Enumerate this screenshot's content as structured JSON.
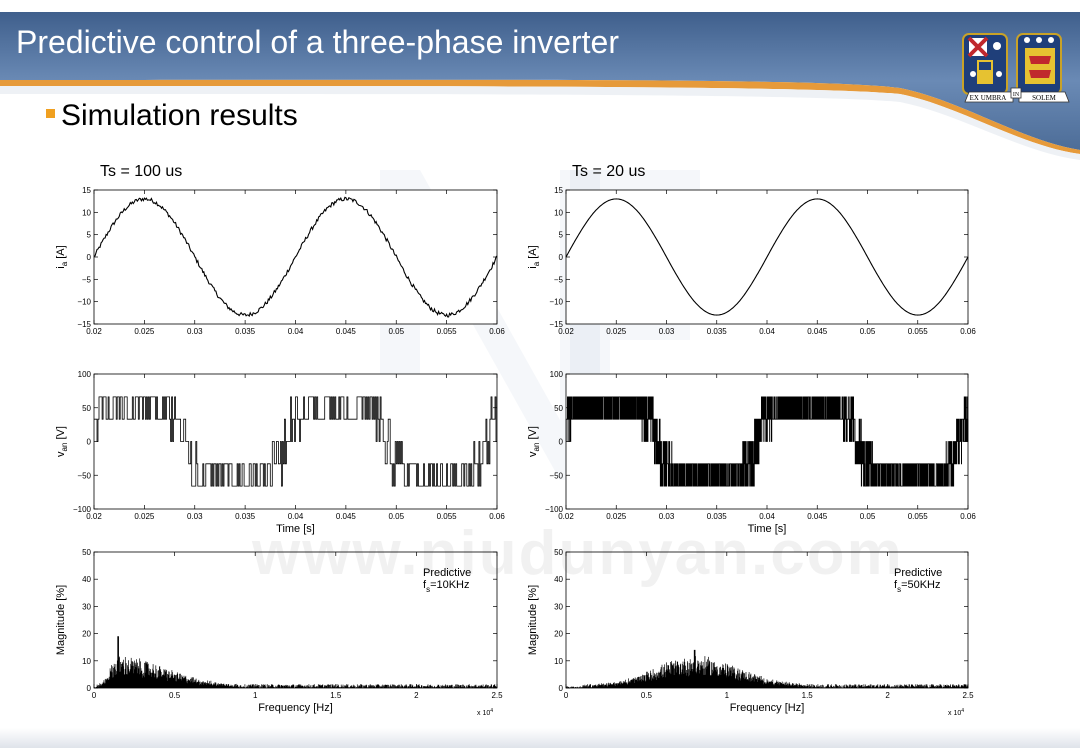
{
  "slide": {
    "title": "Predictive control of a three-phase inverter",
    "bullet": "Simulation results",
    "crest": {
      "left_text": "EX UMBRA",
      "mid_text": "IN",
      "right_text": "SOLEM"
    },
    "watermark": "www.niudunyan.com"
  },
  "colors": {
    "header_blue": "#5a7ba6",
    "header_orange": "#e69a3a",
    "bullet": "#f0a020",
    "trace": "#000000"
  },
  "chart_data": [
    {
      "id": "ia-100",
      "panel_title": "Ts = 100 us",
      "type": "line",
      "signal": "sine_steps",
      "amplitude": 13,
      "period": 0.02,
      "xlim": [
        0.02,
        0.06
      ],
      "ylim": [
        -15,
        15
      ],
      "xticks": [
        "0.02",
        "0.025",
        "0.03",
        "0.035",
        "0.04",
        "0.045",
        "0.05",
        "0.055",
        "0.06"
      ],
      "yticks": [
        "15",
        "10",
        "5",
        "0",
        "−10",
        "−15"
      ],
      "ylabel": "i",
      "ylabel_sub": "a",
      "ylabel_unit": " [A]",
      "xlabel": ""
    },
    {
      "id": "ia-20",
      "panel_title": "Ts = 20 us",
      "type": "line",
      "signal": "sine",
      "amplitude": 13,
      "period": 0.02,
      "xlim": [
        0.02,
        0.06
      ],
      "ylim": [
        -15,
        15
      ],
      "xticks": [
        "0.02",
        "0.025",
        "0.03",
        "0.035",
        "0.04",
        "0.045",
        "0.05",
        "0.055",
        "0.06"
      ],
      "yticks": [
        "15",
        "10",
        "5",
        "0",
        "−10",
        "−15"
      ],
      "ylabel": "i",
      "ylabel_sub": "a",
      "ylabel_unit": " [A]",
      "xlabel": ""
    },
    {
      "id": "van-100",
      "type": "line",
      "signal": "pwm",
      "levels": [
        -66,
        -33,
        0,
        33,
        66
      ],
      "switching_period": 0.0001,
      "xlim": [
        0.02,
        0.06
      ],
      "ylim": [
        -100,
        100
      ],
      "xticks": [
        "0.02",
        "0.025",
        "0.03",
        "0.035",
        "0.04",
        "0.045",
        "0.05",
        "0.055",
        "0.06"
      ],
      "yticks": [
        "100",
        "50",
        "0",
        "−50",
        "−100"
      ],
      "ylabel": "v",
      "ylabel_sub": "an",
      "ylabel_unit": " [V]",
      "xlabel": "Time [s]"
    },
    {
      "id": "van-20",
      "type": "line",
      "signal": "pwm",
      "levels": [
        -66,
        -33,
        0,
        33,
        66
      ],
      "switching_period": 2e-05,
      "xlim": [
        0.02,
        0.06
      ],
      "ylim": [
        -100,
        100
      ],
      "xticks": [
        "0.02",
        "0.025",
        "0.03",
        "0.035",
        "0.04",
        "0.045",
        "0.05",
        "0.055",
        "0.06"
      ],
      "yticks": [
        "100",
        "50",
        "0",
        "−50",
        "−100"
      ],
      "ylabel": "v",
      "ylabel_sub": "an",
      "ylabel_unit": " [V]",
      "xlabel": "Time [s]"
    },
    {
      "id": "spec-10k",
      "type": "line",
      "signal": "spectrum",
      "peak_frequency": 1500,
      "peak_magnitude": 19,
      "spread": [
        500,
        9000
      ],
      "xlim": [
        0,
        25000
      ],
      "ylim": [
        0,
        50
      ],
      "xticks": [
        "0",
        "0.5",
        "1",
        "1.5",
        "2",
        "2.5"
      ],
      "yticks": [
        "50",
        "40",
        "30",
        "20",
        "10",
        "0"
      ],
      "ylabel": "Magnitude [%]",
      "xlabel": "Frequency [Hz]",
      "x_multiplier": "x 10",
      "x_multiplier_exp": "4",
      "annotation": {
        "line1": "Predictive",
        "line2_main": "f",
        "line2_sub": "s",
        "line2_rest": "=10KHz"
      }
    },
    {
      "id": "spec-50k",
      "type": "line",
      "signal": "spectrum",
      "peak_frequency": 8000,
      "peak_magnitude": 14,
      "spread": [
        3500,
        15000
      ],
      "xlim": [
        0,
        25000
      ],
      "ylim": [
        0,
        50
      ],
      "xticks": [
        "0",
        "0.5",
        "1",
        "1.5",
        "2",
        "2.5"
      ],
      "yticks": [
        "50",
        "40",
        "30",
        "20",
        "10",
        "0"
      ],
      "ylabel": "Magnitude [%]",
      "xlabel": "Frequency [Hz]",
      "x_multiplier": "x 10",
      "x_multiplier_exp": "4",
      "annotation": {
        "line1": "Predictive",
        "line2_main": "f",
        "line2_sub": "s",
        "line2_rest": "=50KHz"
      }
    }
  ]
}
